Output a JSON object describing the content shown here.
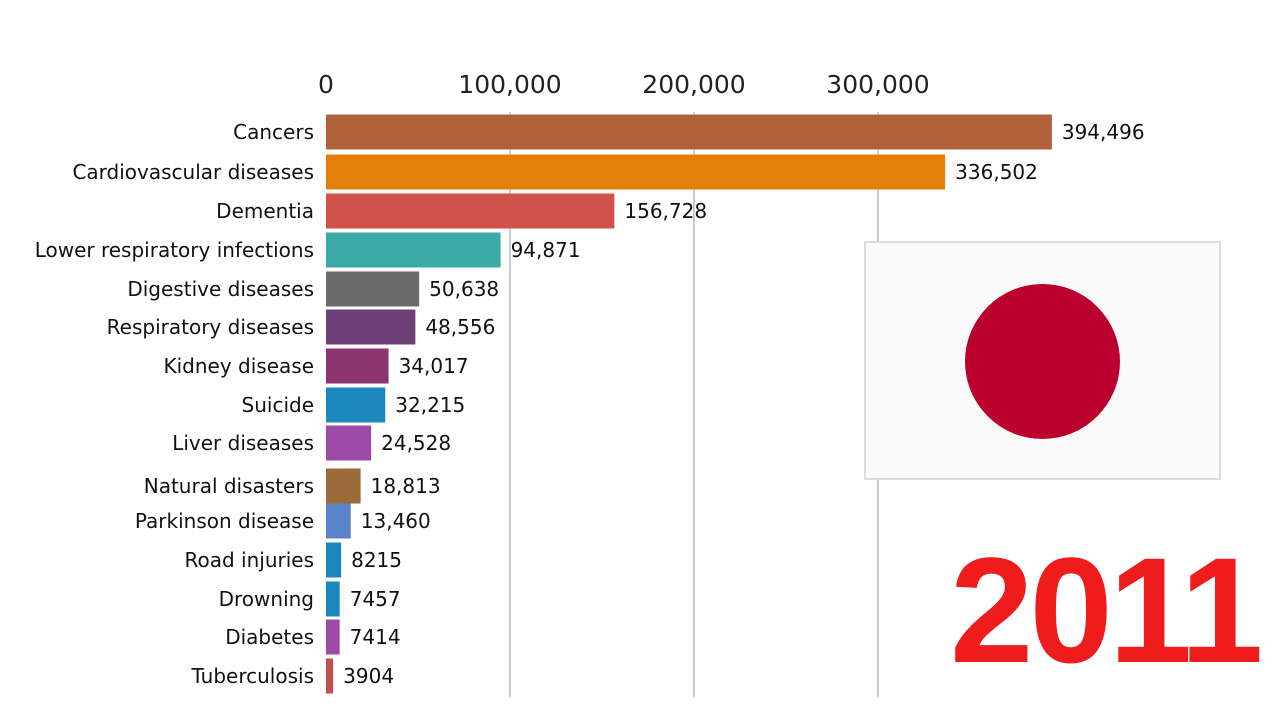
{
  "chart_data": {
    "type": "bar",
    "orientation": "horizontal",
    "categories": [
      "Cancers",
      "Cardiovascular diseases",
      "Dementia",
      "Lower respiratory infections",
      "Digestive diseases",
      "Respiratory diseases",
      "Kidney disease",
      "Suicide",
      "Liver diseases",
      "Natural disasters",
      "Parkinson disease",
      "Road injuries",
      "Drowning",
      "Diabetes",
      "Tuberculosis"
    ],
    "values": [
      394496,
      336502,
      156728,
      94871,
      50638,
      48556,
      34017,
      32215,
      24528,
      18813,
      13460,
      8215,
      7457,
      7414,
      3904
    ],
    "value_labels": [
      "394,496",
      "336,502",
      "156,728",
      "94,871",
      "50,638",
      "48,556",
      "34,017",
      "32,215",
      "24,528",
      "18,813",
      "13,460",
      "8215",
      "7457",
      "7414",
      "3904"
    ],
    "colors": [
      "#b0613a",
      "#e3800a",
      "#d0524a",
      "#3aa9a6",
      "#6a6a6a",
      "#6d3f78",
      "#8c3570",
      "#1a88bd",
      "#9b4aa6",
      "#9b6a3a",
      "#5a82c8",
      "#1a88bd",
      "#1a88bd",
      "#9b4aa6",
      "#c0504d"
    ],
    "x_ticks": [
      0,
      100000,
      200000,
      300000
    ],
    "x_tick_labels": [
      "0",
      "100,000",
      "200,000",
      "300,000"
    ],
    "xlim": [
      0,
      400000
    ],
    "grid": true,
    "title": "",
    "xlabel": "",
    "ylabel": ""
  },
  "year": "2011",
  "flag": {
    "name": "Japan",
    "background": "#fafafa",
    "disc_color": "#bc002d"
  },
  "year_color": "#ee1c1c"
}
